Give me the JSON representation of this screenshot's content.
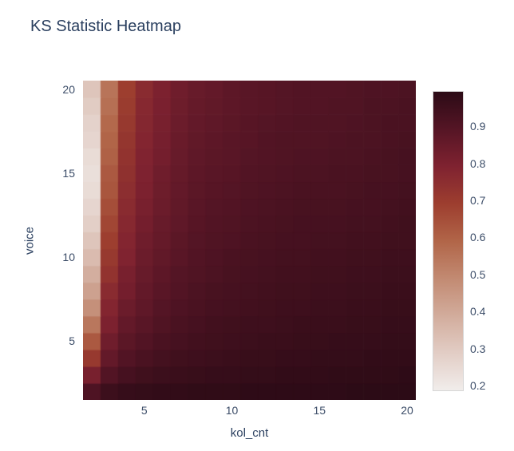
{
  "chart_data": {
    "type": "heatmap",
    "title": "KS Statistic Heatmap",
    "xlabel": "kol_cnt",
    "ylabel": "voice",
    "x": [
      2,
      3,
      4,
      5,
      6,
      7,
      8,
      9,
      10,
      11,
      12,
      13,
      14,
      15,
      16,
      17,
      18,
      19,
      20
    ],
    "y": [
      2,
      3,
      4,
      5,
      6,
      7,
      8,
      9,
      10,
      11,
      12,
      13,
      14,
      15,
      16,
      17,
      18,
      19,
      20
    ],
    "x_range": [
      1.5,
      20.5
    ],
    "y_range": [
      1.5,
      20.5
    ],
    "x_ticks": [
      {
        "v": 5,
        "label": "5"
      },
      {
        "v": 10,
        "label": "10"
      },
      {
        "v": 15,
        "label": "15"
      },
      {
        "v": 20,
        "label": "20"
      }
    ],
    "y_ticks": [
      {
        "v": 5,
        "label": "5"
      },
      {
        "v": 10,
        "label": "10"
      },
      {
        "v": 15,
        "label": "15"
      },
      {
        "v": 20,
        "label": "20"
      }
    ],
    "zmin": 0.185,
    "zmax": 0.995,
    "colorbar_ticks": [
      {
        "v": 0.9,
        "label": "0.9"
      },
      {
        "v": 0.8,
        "label": "0.8"
      },
      {
        "v": 0.7,
        "label": "0.7"
      },
      {
        "v": 0.6,
        "label": "0.6"
      },
      {
        "v": 0.5,
        "label": "0.5"
      },
      {
        "v": 0.4,
        "label": "0.4"
      },
      {
        "v": 0.3,
        "label": "0.3"
      },
      {
        "v": 0.2,
        "label": "0.2"
      }
    ],
    "colorscale": [
      [
        0.0,
        "#f1edeb"
      ],
      [
        0.125,
        "#e2cdc5"
      ],
      [
        0.25,
        "#d2ac9c"
      ],
      [
        0.375,
        "#c28a72"
      ],
      [
        0.5,
        "#b16548"
      ],
      [
        0.625,
        "#9d3e2f"
      ],
      [
        0.75,
        "#7f2230"
      ],
      [
        0.875,
        "#551525"
      ],
      [
        1.0,
        "#2c0b16"
      ]
    ],
    "z_rows_are_voice_2_to_20": true,
    "z": [
      [
        0.91,
        0.955,
        0.97,
        0.975,
        0.98,
        0.98,
        0.985,
        0.985,
        0.985,
        0.99,
        0.99,
        0.99,
        0.99,
        0.99,
        0.99,
        0.995,
        0.995,
        0.995,
        0.995
      ],
      [
        0.81,
        0.9,
        0.93,
        0.945,
        0.955,
        0.96,
        0.965,
        0.97,
        0.97,
        0.975,
        0.975,
        0.98,
        0.98,
        0.98,
        0.985,
        0.985,
        0.985,
        0.985,
        0.99
      ],
      [
        0.71,
        0.86,
        0.9,
        0.92,
        0.935,
        0.945,
        0.95,
        0.955,
        0.96,
        0.965,
        0.965,
        0.97,
        0.97,
        0.975,
        0.975,
        0.975,
        0.98,
        0.98,
        0.98
      ],
      [
        0.62,
        0.83,
        0.88,
        0.9,
        0.92,
        0.93,
        0.94,
        0.945,
        0.95,
        0.955,
        0.96,
        0.96,
        0.965,
        0.965,
        0.97,
        0.97,
        0.97,
        0.975,
        0.975
      ],
      [
        0.54,
        0.8,
        0.86,
        0.885,
        0.905,
        0.92,
        0.93,
        0.94,
        0.945,
        0.95,
        0.95,
        0.955,
        0.96,
        0.96,
        0.96,
        0.965,
        0.965,
        0.97,
        0.97
      ],
      [
        0.47,
        0.78,
        0.84,
        0.87,
        0.895,
        0.91,
        0.92,
        0.93,
        0.935,
        0.94,
        0.945,
        0.95,
        0.95,
        0.955,
        0.955,
        0.96,
        0.96,
        0.965,
        0.965
      ],
      [
        0.42,
        0.76,
        0.82,
        0.86,
        0.885,
        0.9,
        0.915,
        0.925,
        0.93,
        0.935,
        0.94,
        0.945,
        0.945,
        0.95,
        0.95,
        0.955,
        0.955,
        0.96,
        0.96
      ],
      [
        0.38,
        0.73,
        0.81,
        0.85,
        0.875,
        0.895,
        0.905,
        0.915,
        0.925,
        0.93,
        0.935,
        0.94,
        0.94,
        0.945,
        0.945,
        0.95,
        0.95,
        0.955,
        0.955
      ],
      [
        0.34,
        0.71,
        0.79,
        0.84,
        0.865,
        0.885,
        0.9,
        0.91,
        0.92,
        0.925,
        0.93,
        0.935,
        0.935,
        0.94,
        0.94,
        0.945,
        0.945,
        0.95,
        0.95
      ],
      [
        0.31,
        0.69,
        0.78,
        0.83,
        0.855,
        0.88,
        0.895,
        0.905,
        0.91,
        0.92,
        0.925,
        0.93,
        0.93,
        0.935,
        0.935,
        0.94,
        0.94,
        0.945,
        0.945
      ],
      [
        0.28,
        0.67,
        0.77,
        0.82,
        0.85,
        0.87,
        0.89,
        0.9,
        0.905,
        0.915,
        0.92,
        0.925,
        0.93,
        0.93,
        0.93,
        0.935,
        0.935,
        0.94,
        0.945
      ],
      [
        0.26,
        0.65,
        0.76,
        0.81,
        0.84,
        0.865,
        0.885,
        0.895,
        0.9,
        0.91,
        0.915,
        0.92,
        0.925,
        0.925,
        0.925,
        0.93,
        0.93,
        0.935,
        0.94
      ],
      [
        0.24,
        0.63,
        0.75,
        0.8,
        0.835,
        0.86,
        0.88,
        0.89,
        0.895,
        0.905,
        0.91,
        0.915,
        0.92,
        0.92,
        0.92,
        0.925,
        0.93,
        0.93,
        0.935
      ],
      [
        0.23,
        0.62,
        0.74,
        0.795,
        0.83,
        0.855,
        0.875,
        0.885,
        0.89,
        0.9,
        0.905,
        0.91,
        0.915,
        0.915,
        0.92,
        0.92,
        0.925,
        0.925,
        0.93
      ],
      [
        0.24,
        0.6,
        0.73,
        0.79,
        0.82,
        0.85,
        0.87,
        0.88,
        0.885,
        0.895,
        0.9,
        0.905,
        0.91,
        0.91,
        0.915,
        0.915,
        0.92,
        0.925,
        0.93
      ],
      [
        0.26,
        0.59,
        0.72,
        0.78,
        0.815,
        0.845,
        0.865,
        0.875,
        0.885,
        0.89,
        0.9,
        0.905,
        0.905,
        0.905,
        0.91,
        0.915,
        0.915,
        0.92,
        0.925
      ],
      [
        0.27,
        0.58,
        0.71,
        0.775,
        0.81,
        0.84,
        0.86,
        0.87,
        0.88,
        0.89,
        0.895,
        0.9,
        0.905,
        0.905,
        0.905,
        0.91,
        0.915,
        0.92,
        0.92
      ],
      [
        0.29,
        0.56,
        0.7,
        0.77,
        0.805,
        0.835,
        0.855,
        0.865,
        0.875,
        0.885,
        0.89,
        0.895,
        0.9,
        0.9,
        0.905,
        0.905,
        0.915,
        0.915,
        0.92
      ],
      [
        0.31,
        0.55,
        0.69,
        0.76,
        0.8,
        0.83,
        0.85,
        0.86,
        0.875,
        0.885,
        0.89,
        0.895,
        0.9,
        0.9,
        0.9,
        0.905,
        0.91,
        0.91,
        0.915
      ]
    ],
    "colors": {
      "background": "#ffffff",
      "title_text": "#2a3f5f",
      "tick_text": "#3c4d68",
      "colorbar_outline": "#d6d6d6"
    }
  }
}
